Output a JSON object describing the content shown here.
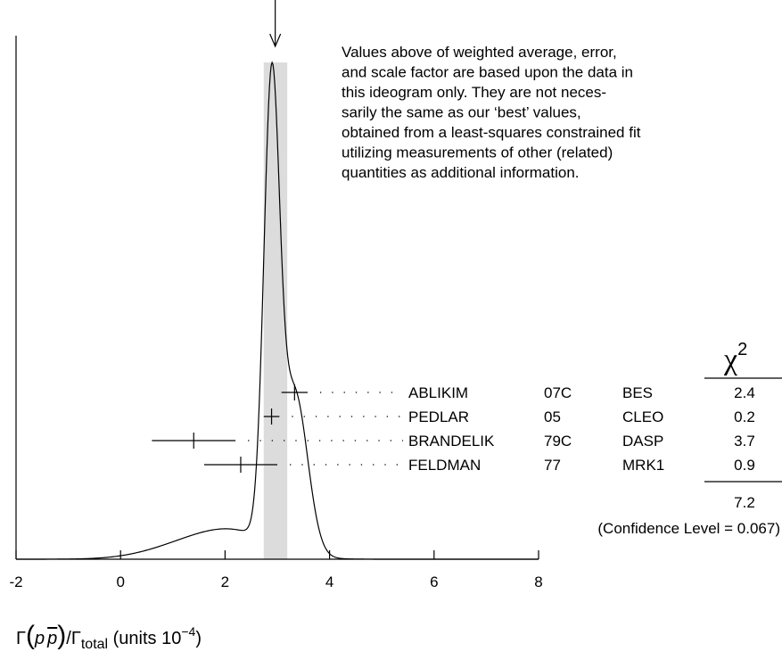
{
  "chart_data": {
    "type": "ideogram",
    "xlim": [
      -2,
      8
    ],
    "xticks": [
      -2,
      0,
      2,
      4,
      6,
      8
    ],
    "average": {
      "value": 2.96,
      "band": [
        2.74,
        3.19
      ]
    },
    "note": [
      "Values above of weighted average, error,",
      "and scale factor are based upon the data in",
      "this ideogram only.  They are not neces-",
      "sarily the same as our ‘best’ values,",
      "obtained from a least-squares constrained fit",
      "utilizing measurements of other (related)",
      "quantities as additional information."
    ],
    "chi2_symbol": "χ",
    "chi2_exponent": "2",
    "measurements": [
      {
        "name": "ABLIKIM",
        "year": "07C",
        "experiment": "BES",
        "value": 3.33,
        "error": 0.25,
        "chi2": 2.4
      },
      {
        "name": "PEDLAR",
        "year": "05",
        "experiment": "CLEO",
        "value": 2.89,
        "error": 0.15,
        "chi2": 0.2
      },
      {
        "name": "BRANDELIK",
        "year": "79C",
        "experiment": "DASP",
        "value": 1.4,
        "error": 0.8,
        "chi2": 3.7
      },
      {
        "name": "FELDMAN",
        "year": "77",
        "experiment": "MRK1",
        "value": 2.3,
        "error": 0.7,
        "chi2": 0.9
      }
    ],
    "chi2_total": 7.2,
    "confidence_label": "(Confidence Level = 0.067)",
    "x_label": {
      "gamma": "Γ",
      "open": "(",
      "p": "p",
      "pbar": "p",
      "close": ")",
      "slash": "/Γ",
      "sub": "total",
      "units": " (units 10",
      "exp": "−4",
      "end": ")"
    }
  }
}
